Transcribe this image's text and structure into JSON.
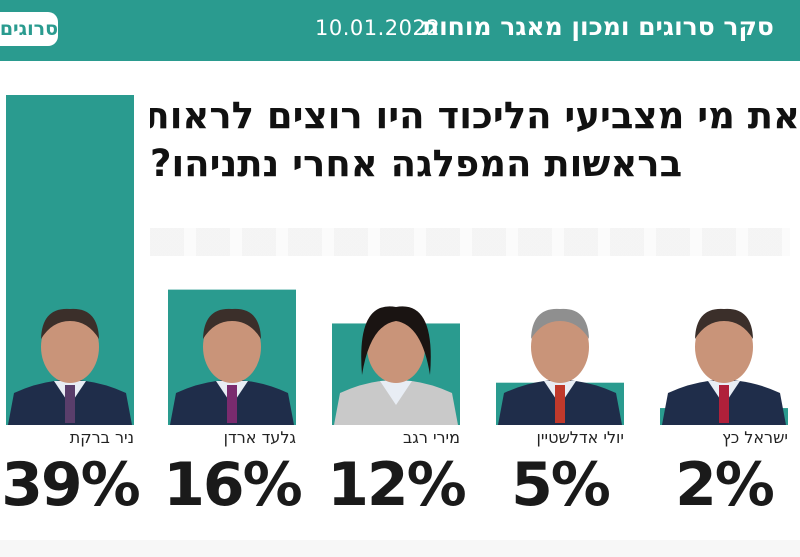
{
  "header": {
    "title": "סקר סרוגים ומכון מאגר מוחות",
    "date": "10.01.2022",
    "brand": "סרוגים"
  },
  "colors": {
    "accent": "#2a9b8f",
    "text": "#1a1a1a"
  },
  "chart_data": {
    "type": "bar",
    "title_lines": [
      "את מי מצביעי הליכוד היו רוצים לראות",
      "בראשות המפלגה אחרי נתניהו?"
    ],
    "categories": [
      "ניר ברקת",
      "גלעד ארדן",
      "מירי רגב",
      "יולי אדלשטיין",
      "ישראל כץ"
    ],
    "values": [
      39,
      16,
      12,
      5,
      2
    ],
    "value_labels": [
      "39%",
      "16%",
      "12%",
      "5%",
      "2%"
    ],
    "unit": "%",
    "ylim": [
      0,
      39
    ],
    "grid": false,
    "legend": "none"
  }
}
